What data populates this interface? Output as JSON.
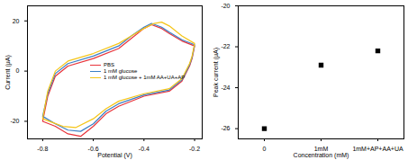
{
  "chart_data": [
    {
      "type": "line",
      "x_label": "Potential (V)",
      "y_label": "Current (μA)",
      "xlim": [
        -0.86,
        -0.17
      ],
      "xticks": [
        -0.8,
        -0.6,
        -0.4,
        -0.2
      ],
      "ylim": [
        -27,
        26
      ],
      "yticks": [
        -20,
        0,
        20
      ],
      "legend": "center",
      "series": [
        {
          "name": "PBS",
          "color": "#e8333a",
          "x": [
            -0.8,
            -0.78,
            -0.75,
            -0.7,
            -0.6,
            -0.5,
            -0.45,
            -0.4,
            -0.37,
            -0.33,
            -0.3,
            -0.25,
            -0.2,
            -0.21,
            -0.22,
            -0.25,
            -0.3,
            -0.4,
            -0.5,
            -0.55,
            -0.6,
            -0.65,
            -0.7,
            -0.75,
            -0.8
          ],
          "values": [
            -20,
            -10,
            -2,
            2,
            5,
            9,
            13,
            17,
            18.5,
            17,
            15,
            12,
            10,
            5,
            2,
            -4,
            -8,
            -10,
            -14,
            -17,
            -22,
            -26,
            -25,
            -22,
            -20
          ]
        },
        {
          "name": "1 mM glucose",
          "color": "#3b7fc4",
          "x": [
            -0.8,
            -0.78,
            -0.75,
            -0.7,
            -0.6,
            -0.5,
            -0.45,
            -0.4,
            -0.37,
            -0.33,
            -0.3,
            -0.25,
            -0.2,
            -0.21,
            -0.22,
            -0.25,
            -0.3,
            -0.4,
            -0.5,
            -0.55,
            -0.6,
            -0.65,
            -0.7,
            -0.75,
            -0.8
          ],
          "values": [
            -18,
            -9,
            -1,
            3,
            6,
            10,
            14,
            17.5,
            19,
            17.5,
            15.5,
            12.5,
            10.5,
            5.5,
            2.5,
            -3.5,
            -7.5,
            -9.5,
            -13,
            -16,
            -21,
            -24,
            -23.5,
            -21,
            -18
          ]
        },
        {
          "name": "1 mM glucose + 1mM AA+UA+AP",
          "color": "#f5c518",
          "x": [
            -0.8,
            -0.78,
            -0.75,
            -0.7,
            -0.6,
            -0.5,
            -0.45,
            -0.4,
            -0.36,
            -0.33,
            -0.3,
            -0.25,
            -0.2,
            -0.21,
            -0.22,
            -0.25,
            -0.3,
            -0.4,
            -0.5,
            -0.55,
            -0.6,
            -0.67,
            -0.72,
            -0.76,
            -0.8
          ],
          "values": [
            -19,
            -8,
            0,
            4,
            7,
            11,
            14,
            17,
            19,
            19.5,
            18,
            14,
            11,
            6,
            3,
            -3,
            -7,
            -9,
            -12,
            -15,
            -19,
            -22.5,
            -22,
            -20.5,
            -19
          ]
        }
      ]
    },
    {
      "type": "scatter",
      "x_label": "Concentration (mM)",
      "y_label": "Peak current (μA)",
      "categories": [
        "0",
        "1mM",
        "1mM+AP+AA+UA"
      ],
      "values": [
        -26,
        -22.9,
        -22.2
      ],
      "color": "#000000",
      "marker": "square",
      "ylim": [
        -26.5,
        -20
      ],
      "yticks": [
        -20,
        -22,
        -24,
        -26
      ]
    }
  ]
}
